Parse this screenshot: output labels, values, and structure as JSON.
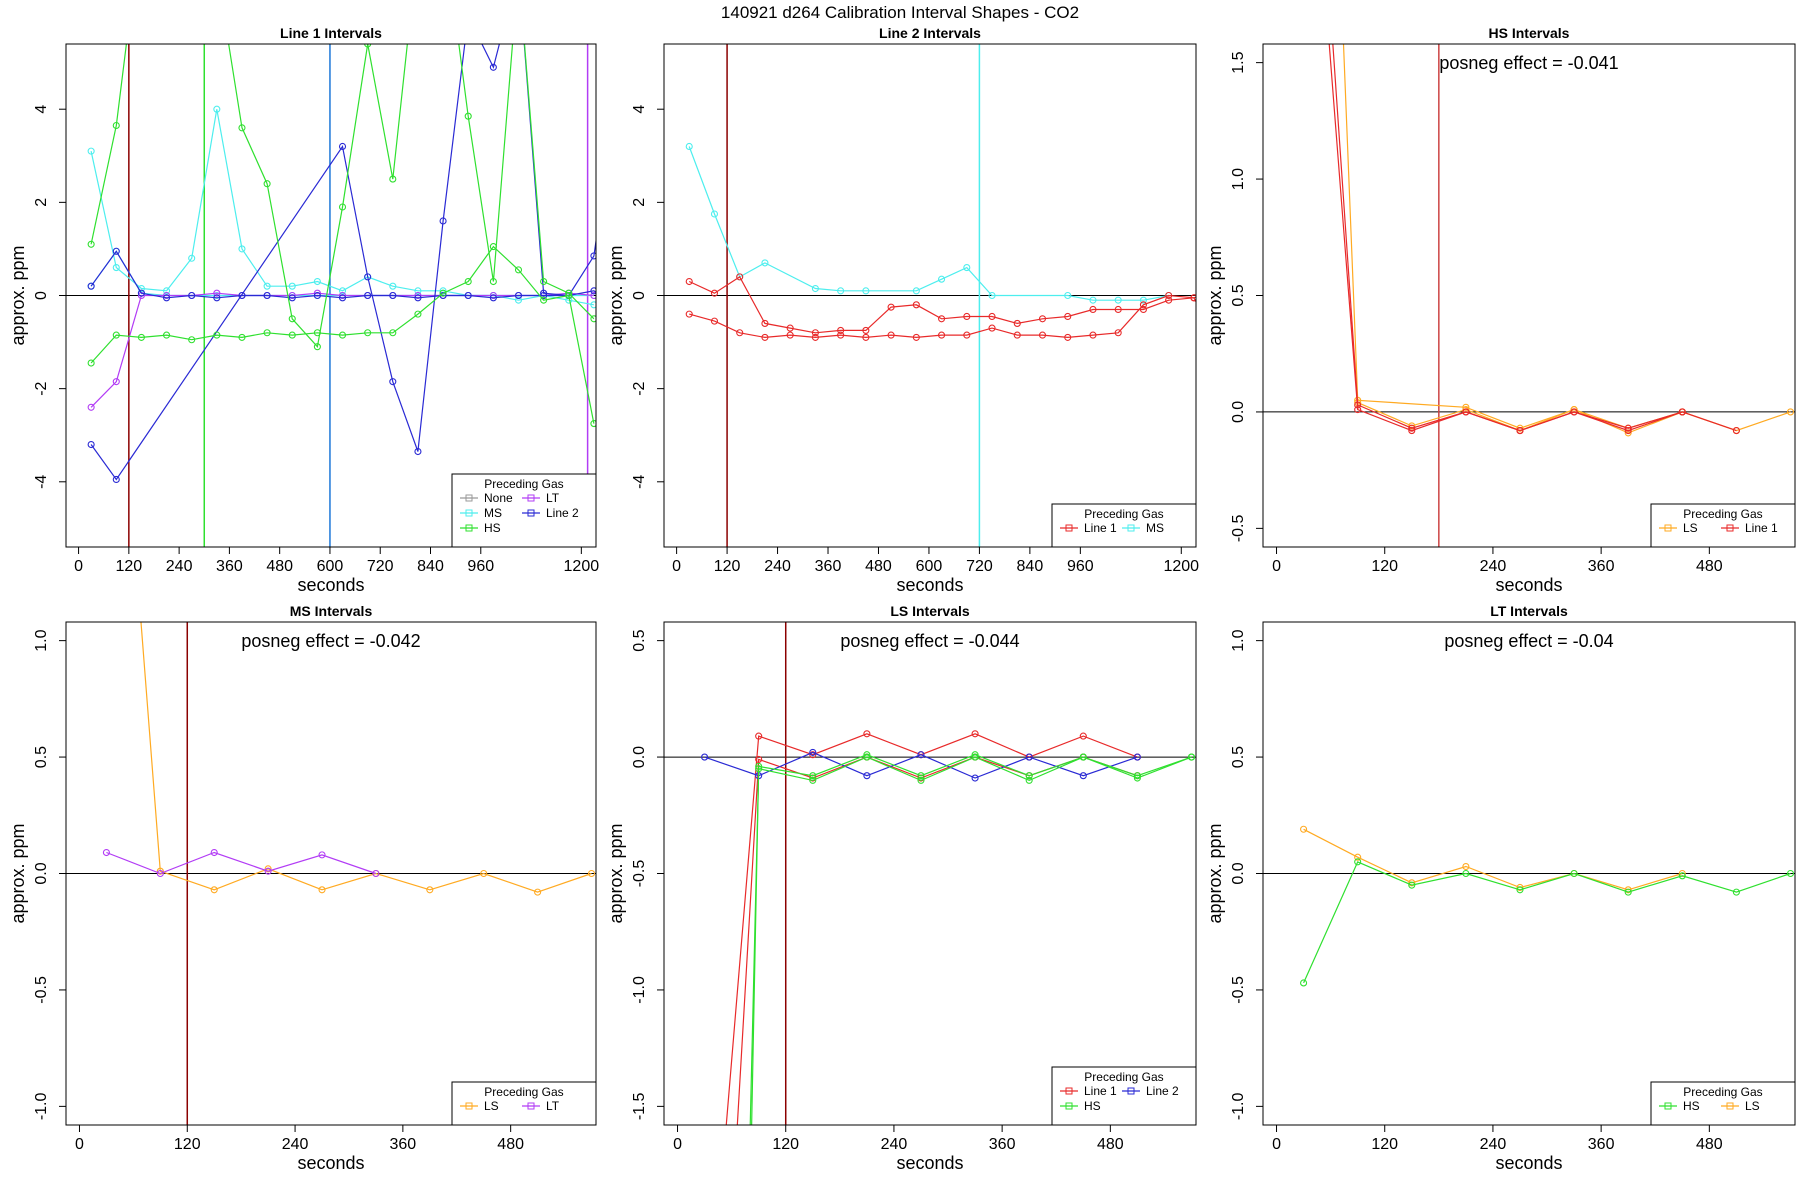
{
  "figure": {
    "title": "140921   d264   Calibration Interval Shapes - CO2"
  },
  "colors": {
    "None": "#999999",
    "LT": "#b23cf5",
    "MS": "#4deeee",
    "Line 2": "#2a2ad4",
    "HS": "#2fe02f",
    "Line 1": "#e82a2a",
    "LS": "#ffaa22",
    "marker_120": "#8b0000",
    "marker_300": "#2fe02f",
    "marker_600": "#1e78d8",
    "marker_1215": "#b23cf5",
    "marker_720": "#4deeee",
    "marker_180": "#cc4444"
  },
  "chart_data": [
    {
      "id": "line1",
      "type": "line",
      "title": "Line 1 Intervals",
      "xlabel": "seconds",
      "ylabel": "approx. ppm",
      "xlim": [
        -30,
        1235
      ],
      "ylim": [
        -5.4,
        5.4
      ],
      "xticks": [
        0,
        120,
        240,
        360,
        480,
        600,
        720,
        840,
        960,
        1200
      ],
      "yticks": [
        -4,
        -2,
        0,
        2,
        4
      ],
      "vlines": [
        {
          "x": 120,
          "color_key": "marker_120"
        },
        {
          "x": 300,
          "color_key": "marker_300"
        },
        {
          "x": 600,
          "color_key": "marker_600"
        },
        {
          "x": 1215,
          "color_key": "marker_1215"
        }
      ],
      "legend": {
        "title": "Preceding Gas",
        "position": "bottom-right",
        "columns": 2,
        "entries": [
          "None",
          "LT",
          "MS",
          "Line 2",
          "HS"
        ]
      },
      "series": [
        {
          "name": "MS",
          "color_key": "MS",
          "x": [
            30,
            90,
            150,
            210,
            270,
            330,
            390,
            450,
            510,
            570,
            630,
            690,
            750,
            810,
            870,
            930,
            990,
            1050,
            1110,
            1170,
            1230
          ],
          "y": [
            3.1,
            0.6,
            0.15,
            0.1,
            0.8,
            4.0,
            1.0,
            0.2,
            0.2,
            0.3,
            0.1,
            0.4,
            0.2,
            0.1,
            0.1,
            0.0,
            0.0,
            -0.1,
            0.0,
            -0.1,
            -0.2
          ]
        },
        {
          "name": "MS",
          "color_key": "MS",
          "x": [
            30,
            90,
            150,
            210,
            270,
            330,
            390,
            450,
            510,
            570,
            630,
            690,
            750,
            810,
            870,
            930,
            990,
            1050,
            1110,
            1170,
            1230
          ],
          "y": [
            0.2,
            0.95,
            0.05,
            0.0,
            0.0,
            0.0,
            0.0,
            0.0,
            0.0,
            0.0,
            0.0,
            0.0,
            0.0,
            0.0,
            0.0,
            0.0,
            0.0,
            0.0,
            0.0,
            0.0,
            0.0
          ]
        },
        {
          "name": "LT",
          "color_key": "LT",
          "x": [
            30,
            90,
            150,
            210,
            270,
            330,
            390,
            450,
            510,
            570,
            630,
            690,
            750,
            810,
            870,
            930,
            990,
            1050,
            1110,
            1170,
            1230
          ],
          "y": [
            -2.4,
            -1.85,
            0.0,
            0.0,
            0.0,
            0.05,
            0.0,
            0.0,
            0.0,
            0.05,
            0.0,
            0.0,
            0.0,
            0.0,
            0.0,
            0.0,
            0.0,
            0.0,
            0.0,
            0.05,
            0.0
          ]
        },
        {
          "name": "Line 2",
          "color_key": "Line 2",
          "x": [
            30,
            90,
            150,
            210,
            270,
            330,
            390,
            450,
            510,
            570,
            630,
            690,
            750,
            810,
            870,
            930,
            990,
            1050,
            1110,
            1170,
            1230,
            1245
          ],
          "y": [
            0.2,
            0.95,
            0.05,
            -0.05,
            0.0,
            -0.05,
            0.0,
            0.0,
            -0.05,
            0.0,
            -0.05,
            0.0,
            0.0,
            -0.05,
            0.0,
            0.0,
            -0.05,
            0.0,
            0.0,
            0.0,
            0.1,
            0.0
          ]
        },
        {
          "name": "Line 2",
          "color_key": "Line 2",
          "x": [
            30,
            90,
            630,
            690,
            750,
            810,
            870,
            930,
            990,
            1050,
            1110,
            1170,
            1230,
            1245
          ],
          "y": [
            -3.2,
            -3.95,
            3.2,
            0.4,
            -1.85,
            -3.35,
            1.6,
            6.0,
            4.9,
            7.0,
            0.05,
            0.0,
            0.85,
            1.8
          ]
        },
        {
          "name": "HS",
          "color_key": "HS",
          "x": [
            30,
            90,
            150,
            210,
            270,
            330,
            390,
            450,
            510,
            570,
            630,
            690,
            750,
            810,
            870,
            930,
            990,
            1050,
            1110,
            1170,
            1230
          ],
          "y": [
            1.1,
            3.65,
            8.0,
            7.0,
            6.0,
            7.0,
            3.6,
            2.4,
            -0.5,
            -1.1,
            1.9,
            5.4,
            2.5,
            7.5,
            8.0,
            3.85,
            0.3,
            7.0,
            0.3,
            0.05,
            -0.5
          ]
        },
        {
          "name": "HS",
          "color_key": "HS",
          "x": [
            30,
            90,
            150,
            210,
            270,
            330,
            390,
            450,
            510,
            570,
            630,
            690,
            750,
            810,
            870,
            930,
            990,
            1050,
            1110,
            1170,
            1230
          ],
          "y": [
            -1.45,
            -0.85,
            -0.9,
            -0.85,
            -0.95,
            -0.85,
            -0.9,
            -0.8,
            -0.85,
            -0.8,
            -0.85,
            -0.8,
            -0.8,
            -0.4,
            0.05,
            0.3,
            1.05,
            0.55,
            -0.1,
            0.0,
            -2.75
          ]
        }
      ]
    },
    {
      "id": "line2",
      "type": "line",
      "title": "Line 2 Intervals",
      "xlabel": "seconds",
      "ylabel": "approx. ppm",
      "xlim": [
        -30,
        1235
      ],
      "ylim": [
        -5.4,
        5.4
      ],
      "xticks": [
        0,
        120,
        240,
        360,
        480,
        600,
        720,
        840,
        960,
        1200
      ],
      "yticks": [
        -4,
        -2,
        0,
        2,
        4
      ],
      "vlines": [
        {
          "x": 120,
          "color_key": "marker_120"
        },
        {
          "x": 720,
          "color_key": "marker_720"
        }
      ],
      "legend": {
        "title": "Preceding Gas",
        "position": "bottom-right",
        "columns": 2,
        "entries": [
          "Line 1",
          "MS"
        ]
      },
      "series": [
        {
          "name": "MS",
          "color_key": "MS",
          "x": [
            30,
            90,
            150,
            210,
            330,
            390,
            450,
            570,
            630,
            690,
            750,
            930,
            990,
            1050,
            1110,
            1170
          ],
          "y": [
            3.2,
            1.75,
            0.4,
            0.7,
            0.15,
            0.1,
            0.1,
            0.1,
            0.35,
            0.6,
            0.0,
            0.0,
            -0.1,
            -0.1,
            -0.1,
            0.0
          ]
        },
        {
          "name": "Line 1",
          "color_key": "Line 1",
          "x": [
            30,
            90,
            150,
            210,
            270,
            330,
            390,
            450,
            510,
            570,
            630,
            690,
            750,
            810,
            870,
            930,
            990,
            1050,
            1110,
            1170,
            1230,
            1245
          ],
          "y": [
            0.3,
            0.05,
            0.4,
            -0.6,
            -0.7,
            -0.8,
            -0.75,
            -0.75,
            -0.25,
            -0.2,
            -0.5,
            -0.45,
            -0.45,
            -0.6,
            -0.5,
            -0.45,
            -0.3,
            -0.3,
            -0.3,
            -0.1,
            -0.05,
            0.0
          ]
        },
        {
          "name": "Line 1",
          "color_key": "Line 1",
          "x": [
            30,
            90,
            150,
            210,
            270,
            330,
            390,
            450,
            510,
            570,
            630,
            690,
            750,
            810,
            870,
            930,
            990,
            1050,
            1110,
            1170,
            1230,
            1245
          ],
          "y": [
            -0.4,
            -0.55,
            -0.8,
            -0.9,
            -0.85,
            -0.9,
            -0.85,
            -0.9,
            -0.85,
            -0.9,
            -0.85,
            -0.85,
            -0.7,
            -0.85,
            -0.85,
            -0.9,
            -0.85,
            -0.8,
            -0.2,
            0.0,
            -0.05,
            -0.3
          ]
        }
      ]
    },
    {
      "id": "hs",
      "type": "line",
      "title": "HS Intervals",
      "xlabel": "seconds",
      "ylabel": "approx. ppm",
      "xlim": [
        -15,
        575
      ],
      "ylim": [
        -0.58,
        1.58
      ],
      "xticks": [
        0,
        120,
        240,
        360,
        480
      ],
      "yticks": [
        -0.5,
        0.0,
        0.5,
        1.0,
        1.5
      ],
      "vlines": [
        {
          "x": 180,
          "color_key": "marker_180"
        }
      ],
      "annotation": "posneg effect = -0.041",
      "legend": {
        "title": "Preceding Gas",
        "position": "bottom-right",
        "columns": 2,
        "entries": [
          "LS",
          "Line 1"
        ]
      },
      "series": [
        {
          "name": "LS",
          "color_key": "LS",
          "x": [
            70,
            90,
            210,
            270,
            330,
            390,
            450,
            510,
            570
          ],
          "y": [
            2.0,
            0.05,
            0.02,
            -0.07,
            0.01,
            -0.07,
            0.0,
            -0.08,
            0.0
          ]
        },
        {
          "name": "LS",
          "color_key": "LS",
          "x": [
            90,
            150,
            210,
            270,
            330,
            390,
            450
          ],
          "y": [
            0.04,
            -0.06,
            0.01,
            -0.08,
            0.01,
            -0.09,
            0.0
          ]
        },
        {
          "name": "Line 1",
          "color_key": "Line 1",
          "x": [
            50,
            90,
            150,
            210,
            270,
            330,
            390,
            450,
            510
          ],
          "y": [
            2.0,
            0.01,
            -0.08,
            0.0,
            -0.08,
            0.0,
            -0.08,
            0.0,
            -0.08
          ]
        },
        {
          "name": "Line 1",
          "color_key": "Line 1",
          "x": [
            55,
            90,
            150,
            210,
            270,
            330,
            390,
            450
          ],
          "y": [
            2.0,
            0.03,
            -0.07,
            0.0,
            -0.08,
            0.0,
            -0.07,
            0.0
          ]
        }
      ]
    },
    {
      "id": "ms",
      "type": "line",
      "title": "MS Intervals",
      "xlabel": "seconds",
      "ylabel": "approx. ppm",
      "xlim": [
        -15,
        575
      ],
      "ylim": [
        -1.08,
        1.08
      ],
      "xticks": [
        0,
        120,
        240,
        360,
        480
      ],
      "yticks": [
        -1.0,
        -0.5,
        0.0,
        0.5,
        1.0
      ],
      "vlines": [
        {
          "x": 120,
          "color_key": "marker_120"
        }
      ],
      "annotation": "posneg effect = -0.042",
      "legend": {
        "title": "Preceding Gas",
        "position": "bottom-right",
        "columns": 2,
        "entries": [
          "LS",
          "LT"
        ]
      },
      "series": [
        {
          "name": "LS",
          "color_key": "LS",
          "x": [
            60,
            90,
            150,
            210,
            270,
            330,
            390,
            450,
            510,
            570
          ],
          "y": [
            1.5,
            0.01,
            -0.07,
            0.02,
            -0.07,
            0.0,
            -0.07,
            0.0,
            -0.08,
            0.0
          ]
        },
        {
          "name": "LT",
          "color_key": "LT",
          "x": [
            30,
            90,
            150,
            210,
            270,
            330
          ],
          "y": [
            0.09,
            0.0,
            0.09,
            0.01,
            0.08,
            0.0
          ]
        }
      ]
    },
    {
      "id": "ls",
      "type": "line",
      "title": "LS Intervals",
      "xlabel": "seconds",
      "ylabel": "approx. ppm",
      "xlim": [
        -15,
        575
      ],
      "ylim": [
        -1.58,
        0.58
      ],
      "xticks": [
        0,
        120,
        240,
        360,
        480
      ],
      "yticks": [
        -1.5,
        -1.0,
        -0.5,
        0.0,
        0.5
      ],
      "vlines": [
        {
          "x": 120,
          "color_key": "marker_120"
        }
      ],
      "annotation": "posneg effect = -0.044",
      "legend": {
        "title": "Preceding Gas",
        "position": "bottom-right",
        "columns": 2,
        "entries": [
          "Line 1",
          "Line 2",
          "HS"
        ]
      },
      "series": [
        {
          "name": "Line 1",
          "color_key": "Line 1",
          "x": [
            45,
            90,
            150,
            210,
            270,
            330,
            390,
            450,
            510
          ],
          "y": [
            -2.0,
            0.09,
            0.01,
            0.1,
            0.01,
            0.1,
            0.0,
            0.09,
            0.0
          ]
        },
        {
          "name": "Line 1",
          "color_key": "Line 1",
          "x": [
            60,
            90,
            150,
            210,
            270,
            330,
            390,
            450,
            510
          ],
          "y": [
            -2.0,
            -0.01,
            -0.09,
            0.0,
            -0.09,
            0.0,
            -0.08,
            0.0,
            -0.08
          ]
        },
        {
          "name": "Line 2",
          "color_key": "Line 2",
          "x": [
            30,
            90,
            150,
            210,
            270,
            330,
            390,
            450,
            510
          ],
          "y": [
            0.0,
            -0.08,
            0.02,
            -0.08,
            0.01,
            -0.09,
            0.0,
            -0.08,
            0.0
          ]
        },
        {
          "name": "HS",
          "color_key": "HS",
          "x": [
            78,
            90,
            150,
            210,
            270,
            330,
            390,
            450,
            510,
            570
          ],
          "y": [
            -2.0,
            -0.05,
            -0.1,
            0.0,
            -0.1,
            0.0,
            -0.1,
            0.0,
            -0.09,
            0.0
          ]
        },
        {
          "name": "HS",
          "color_key": "HS",
          "x": [
            80,
            90,
            150,
            210,
            270,
            330,
            390,
            450,
            510,
            570
          ],
          "y": [
            -2.0,
            -0.04,
            -0.08,
            0.01,
            -0.08,
            0.01,
            -0.08,
            0.0,
            -0.08,
            0.0
          ]
        }
      ]
    },
    {
      "id": "lt",
      "type": "line",
      "title": "LT Intervals",
      "xlabel": "seconds",
      "ylabel": "approx. ppm",
      "xlim": [
        -15,
        575
      ],
      "ylim": [
        -1.08,
        1.08
      ],
      "xticks": [
        0,
        120,
        240,
        360,
        480
      ],
      "yticks": [
        -1.0,
        -0.5,
        0.0,
        0.5,
        1.0
      ],
      "vlines": [],
      "annotation": "posneg effect = -0.04",
      "legend": {
        "title": "Preceding Gas",
        "position": "bottom-right",
        "columns": 2,
        "entries": [
          "HS",
          "LS"
        ]
      },
      "series": [
        {
          "name": "LS",
          "color_key": "LS",
          "x": [
            30,
            90,
            150,
            210,
            270,
            330,
            390,
            450
          ],
          "y": [
            0.19,
            0.07,
            -0.04,
            0.03,
            -0.06,
            0.0,
            -0.07,
            0.0
          ]
        },
        {
          "name": "HS",
          "color_key": "HS",
          "x": [
            30,
            90,
            150,
            210,
            270,
            330,
            390,
            450,
            510,
            570
          ],
          "y": [
            -0.47,
            0.05,
            -0.05,
            0.0,
            -0.07,
            0.0,
            -0.08,
            -0.01,
            -0.08,
            0.0
          ]
        }
      ]
    }
  ]
}
